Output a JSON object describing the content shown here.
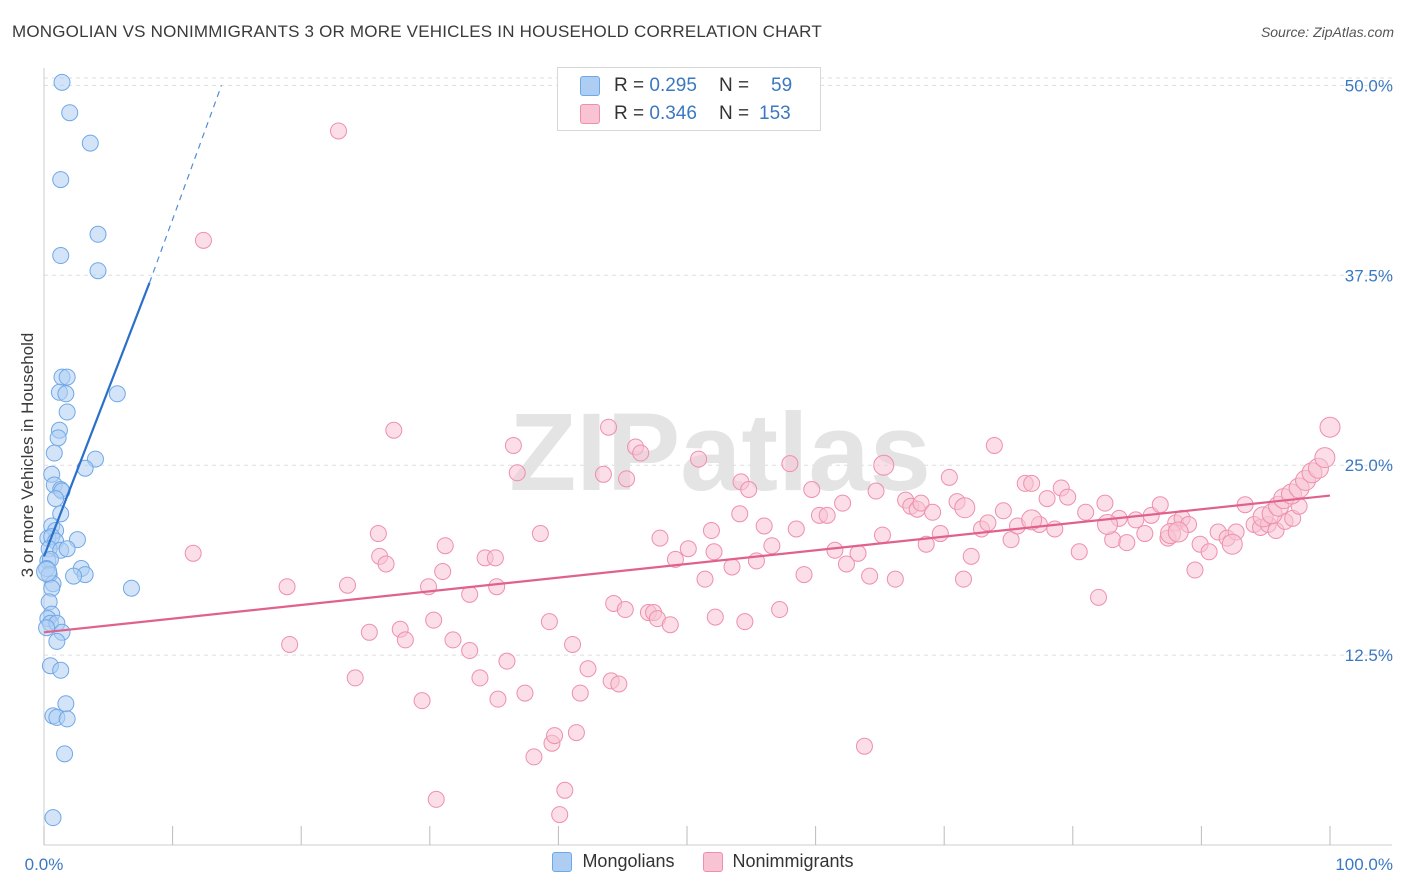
{
  "chart_data": {
    "type": "scatter",
    "title": "MONGOLIAN VS NONIMMIGRANTS 3 OR MORE VEHICLES IN HOUSEHOLD CORRELATION CHART",
    "source": "Source: ZipAtlas.com",
    "ylabel": "3 or more Vehicles in Household",
    "xlim": [
      0,
      100
    ],
    "ylim": [
      0,
      52
    ],
    "x_tick_labels": [
      "0.0%",
      "100.0%"
    ],
    "y_ticks": [
      12.5,
      25.0,
      37.5,
      50.0
    ],
    "y_tick_labels": [
      "12.5%",
      "25.0%",
      "37.5%",
      "50.0%"
    ],
    "watermark": "ZIPatlas",
    "legend_stats": [
      {
        "r_label": "R =",
        "r_value": "0.295",
        "n_label": "N =",
        "n_value": "59"
      },
      {
        "r_label": "R =",
        "r_value": "0.346",
        "n_label": "N =",
        "n_value": "153"
      }
    ],
    "series": [
      {
        "name": "Mongolians",
        "color": "#6fa8e8",
        "fill": "#aecdf2",
        "trend": {
          "x0": 0,
          "y0": 19.0,
          "x1": 8.2,
          "y1": 37.0,
          "dash_to_x": 13.8,
          "dash_to_y": 50.0,
          "color": "#2a6fca"
        },
        "points": [
          [
            1.4,
            50.2
          ],
          [
            2.0,
            48.2
          ],
          [
            3.6,
            46.2
          ],
          [
            1.3,
            43.8
          ],
          [
            4.2,
            40.2
          ],
          [
            1.3,
            38.8
          ],
          [
            4.2,
            37.8
          ],
          [
            5.7,
            29.7
          ],
          [
            1.4,
            30.8
          ],
          [
            1.8,
            30.8
          ],
          [
            1.2,
            29.8
          ],
          [
            1.7,
            29.7
          ],
          [
            1.8,
            28.5
          ],
          [
            1.2,
            27.3
          ],
          [
            1.1,
            26.8
          ],
          [
            0.8,
            25.8
          ],
          [
            4.0,
            25.4
          ],
          [
            3.2,
            24.8
          ],
          [
            0.6,
            24.4
          ],
          [
            0.8,
            23.7
          ],
          [
            1.3,
            23.4
          ],
          [
            1.4,
            23.3
          ],
          [
            0.9,
            22.8
          ],
          [
            1.3,
            21.8
          ],
          [
            0.6,
            21.0
          ],
          [
            0.9,
            20.7
          ],
          [
            0.3,
            20.2
          ],
          [
            0.6,
            20.3
          ],
          [
            0.9,
            20.0
          ],
          [
            2.6,
            20.1
          ],
          [
            0.4,
            19.5
          ],
          [
            1.3,
            19.4
          ],
          [
            1.8,
            19.5
          ],
          [
            0.3,
            18.7
          ],
          [
            0.5,
            18.8
          ],
          [
            0.2,
            18.2
          ],
          [
            2.9,
            18.2
          ],
          [
            0.4,
            17.8
          ],
          [
            3.2,
            17.8
          ],
          [
            2.3,
            17.7
          ],
          [
            0.7,
            17.2
          ],
          [
            0.6,
            16.9
          ],
          [
            6.8,
            16.9
          ],
          [
            0.4,
            16.0
          ],
          [
            0.6,
            15.2
          ],
          [
            0.3,
            14.9
          ],
          [
            0.5,
            14.6
          ],
          [
            1.0,
            14.6
          ],
          [
            0.2,
            14.3
          ],
          [
            1.4,
            14.0
          ],
          [
            1.0,
            13.4
          ],
          [
            0.5,
            11.8
          ],
          [
            1.3,
            11.5
          ],
          [
            1.7,
            9.3
          ],
          [
            0.7,
            8.5
          ],
          [
            1.0,
            8.4
          ],
          [
            1.8,
            8.3
          ],
          [
            1.6,
            6.0
          ],
          [
            0.7,
            1.8
          ]
        ],
        "big_points": [
          [
            0.2,
            18.0
          ]
        ]
      },
      {
        "name": "Nonimmigrants",
        "color": "#ef8fae",
        "fill": "#f8c3d3",
        "trend": {
          "x0": 0,
          "y0": 14.0,
          "x1": 100,
          "y1": 23.0,
          "color": "#e0628c"
        },
        "points": [
          [
            22.9,
            47.0
          ],
          [
            12.4,
            39.8
          ],
          [
            11.6,
            19.2
          ],
          [
            18.9,
            17.0
          ],
          [
            23.6,
            17.1
          ],
          [
            19.1,
            13.2
          ],
          [
            24.2,
            11.0
          ],
          [
            25.3,
            14.0
          ],
          [
            27.7,
            14.2
          ],
          [
            26.1,
            19.0
          ],
          [
            26.6,
            18.5
          ],
          [
            26.0,
            20.5
          ],
          [
            28.1,
            13.5
          ],
          [
            27.2,
            27.3
          ],
          [
            29.9,
            17.0
          ],
          [
            29.4,
            9.5
          ],
          [
            30.3,
            14.8
          ],
          [
            30.5,
            3.0
          ],
          [
            31.0,
            18.0
          ],
          [
            31.2,
            19.7
          ],
          [
            31.8,
            13.5
          ],
          [
            33.1,
            12.8
          ],
          [
            33.1,
            16.5
          ],
          [
            33.9,
            11.0
          ],
          [
            34.3,
            18.9
          ],
          [
            35.2,
            17.0
          ],
          [
            35.3,
            9.6
          ],
          [
            36.0,
            12.1
          ],
          [
            35.1,
            18.9
          ],
          [
            36.5,
            26.3
          ],
          [
            36.8,
            24.5
          ],
          [
            37.4,
            10.0
          ],
          [
            38.1,
            5.8
          ],
          [
            38.6,
            20.5
          ],
          [
            39.3,
            14.7
          ],
          [
            39.5,
            6.7
          ],
          [
            39.7,
            7.2
          ],
          [
            40.1,
            2.0
          ],
          [
            40.5,
            3.6
          ],
          [
            41.1,
            13.2
          ],
          [
            41.4,
            7.4
          ],
          [
            41.7,
            10.0
          ],
          [
            42.3,
            11.6
          ],
          [
            43.5,
            24.4
          ],
          [
            43.9,
            27.5
          ],
          [
            44.1,
            10.8
          ],
          [
            44.3,
            15.9
          ],
          [
            44.7,
            10.6
          ],
          [
            45.2,
            15.5
          ],
          [
            45.3,
            24.1
          ],
          [
            46.0,
            26.2
          ],
          [
            46.4,
            25.8
          ],
          [
            47.0,
            15.3
          ],
          [
            47.4,
            15.3
          ],
          [
            47.7,
            14.9
          ],
          [
            47.9,
            20.2
          ],
          [
            48.7,
            14.5
          ],
          [
            49.1,
            18.8
          ],
          [
            50.1,
            19.5
          ],
          [
            50.9,
            25.4
          ],
          [
            51.4,
            17.5
          ],
          [
            51.9,
            20.7
          ],
          [
            52.1,
            19.3
          ],
          [
            52.2,
            15.0
          ],
          [
            53.5,
            18.3
          ],
          [
            54.1,
            21.8
          ],
          [
            54.2,
            23.9
          ],
          [
            54.5,
            14.7
          ],
          [
            54.8,
            23.4
          ],
          [
            55.4,
            18.7
          ],
          [
            56.0,
            21.0
          ],
          [
            56.6,
            19.7
          ],
          [
            57.2,
            15.5
          ],
          [
            58.0,
            25.1
          ],
          [
            58.5,
            20.8
          ],
          [
            59.1,
            17.8
          ],
          [
            59.7,
            23.4
          ],
          [
            60.3,
            21.7
          ],
          [
            60.9,
            21.7
          ],
          [
            61.5,
            19.4
          ],
          [
            62.1,
            22.5
          ],
          [
            62.4,
            18.5
          ],
          [
            63.3,
            19.2
          ],
          [
            63.8,
            6.5
          ],
          [
            64.2,
            17.7
          ],
          [
            64.7,
            23.3
          ],
          [
            65.2,
            20.4
          ],
          [
            66.2,
            17.5
          ],
          [
            67.0,
            22.7
          ],
          [
            67.4,
            22.3
          ],
          [
            67.9,
            22.1
          ],
          [
            68.2,
            22.5
          ],
          [
            68.6,
            19.8
          ],
          [
            69.1,
            21.9
          ],
          [
            69.7,
            20.5
          ],
          [
            70.4,
            24.2
          ],
          [
            71.0,
            22.6
          ],
          [
            71.5,
            17.5
          ],
          [
            72.1,
            19.0
          ],
          [
            72.9,
            20.8
          ],
          [
            73.4,
            21.2
          ],
          [
            73.9,
            26.3
          ],
          [
            74.6,
            22.0
          ],
          [
            75.2,
            20.1
          ],
          [
            75.7,
            21.0
          ],
          [
            76.3,
            23.8
          ],
          [
            76.8,
            23.8
          ],
          [
            77.4,
            21.1
          ],
          [
            78.0,
            22.8
          ],
          [
            78.6,
            20.8
          ],
          [
            79.1,
            23.5
          ],
          [
            79.6,
            22.9
          ],
          [
            80.5,
            19.3
          ],
          [
            81.0,
            21.9
          ],
          [
            82.0,
            16.3
          ],
          [
            82.5,
            22.5
          ],
          [
            83.1,
            20.1
          ],
          [
            83.6,
            21.5
          ],
          [
            84.2,
            19.9
          ],
          [
            84.9,
            21.4
          ],
          [
            85.6,
            20.5
          ],
          [
            86.1,
            21.7
          ],
          [
            86.8,
            22.4
          ],
          [
            87.4,
            20.2
          ],
          [
            88.0,
            21.2
          ],
          [
            88.5,
            21.5
          ],
          [
            89.0,
            21.1
          ],
          [
            89.5,
            18.1
          ],
          [
            89.9,
            19.8
          ],
          [
            90.6,
            19.3
          ],
          [
            91.3,
            20.6
          ],
          [
            92.0,
            20.2
          ],
          [
            92.7,
            20.6
          ],
          [
            93.4,
            22.4
          ],
          [
            94.1,
            21.1
          ],
          [
            94.6,
            20.9
          ],
          [
            95.2,
            21.1
          ],
          [
            95.8,
            20.7
          ],
          [
            96.5,
            21.3
          ],
          [
            97.1,
            21.5
          ],
          [
            97.6,
            22.3
          ]
        ],
        "big_points": [
          [
            65.3,
            25.0
          ],
          [
            71.6,
            22.2
          ],
          [
            76.8,
            21.4
          ],
          [
            82.7,
            21.1
          ],
          [
            87.6,
            20.5
          ],
          [
            88.2,
            20.6
          ],
          [
            92.4,
            19.8
          ],
          [
            94.8,
            21.6
          ],
          [
            95.5,
            21.8
          ],
          [
            96.0,
            22.3
          ],
          [
            96.4,
            22.8
          ],
          [
            97.0,
            23.1
          ],
          [
            97.6,
            23.5
          ],
          [
            98.1,
            24.0
          ],
          [
            98.6,
            24.5
          ],
          [
            99.1,
            24.8
          ],
          [
            99.6,
            25.5
          ],
          [
            100.0,
            27.5
          ]
        ]
      }
    ],
    "legend_bottom": [
      "Mongolians",
      "Nonimmigrants"
    ]
  }
}
